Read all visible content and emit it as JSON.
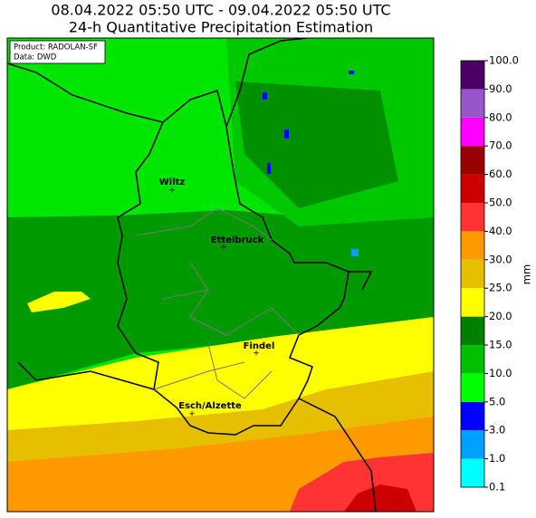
{
  "header": {
    "line1": "08.04.2022 05:50 UTC - 09.04.2022 05:50 UTC",
    "line2": "24-h Quantitative Precipitation Estimation"
  },
  "info_box": {
    "product": "Product: RADOLAN-SF",
    "data": "Data: DWD"
  },
  "cities": [
    "Wiltz",
    "Ettelbruck",
    "Findel",
    "Esch/Alzette"
  ],
  "colorbar": {
    "label": "mm",
    "ticks": [
      "0.1",
      "1.0",
      "3.0",
      "5.0",
      "10.0",
      "15.0",
      "20.0",
      "25.0",
      "30.0",
      "40.0",
      "50.0",
      "60.0",
      "70.0",
      "80.0",
      "90.0",
      "100.0"
    ],
    "colors": [
      "#00ffff",
      "#00a0ff",
      "#0000ff",
      "#00ff00",
      "#00c000",
      "#008000",
      "#ffff00",
      "#e6c000",
      "#ff9900",
      "#ff3333",
      "#cc0000",
      "#990000",
      "#ff00ff",
      "#9955cc",
      "#4b0066"
    ]
  }
}
